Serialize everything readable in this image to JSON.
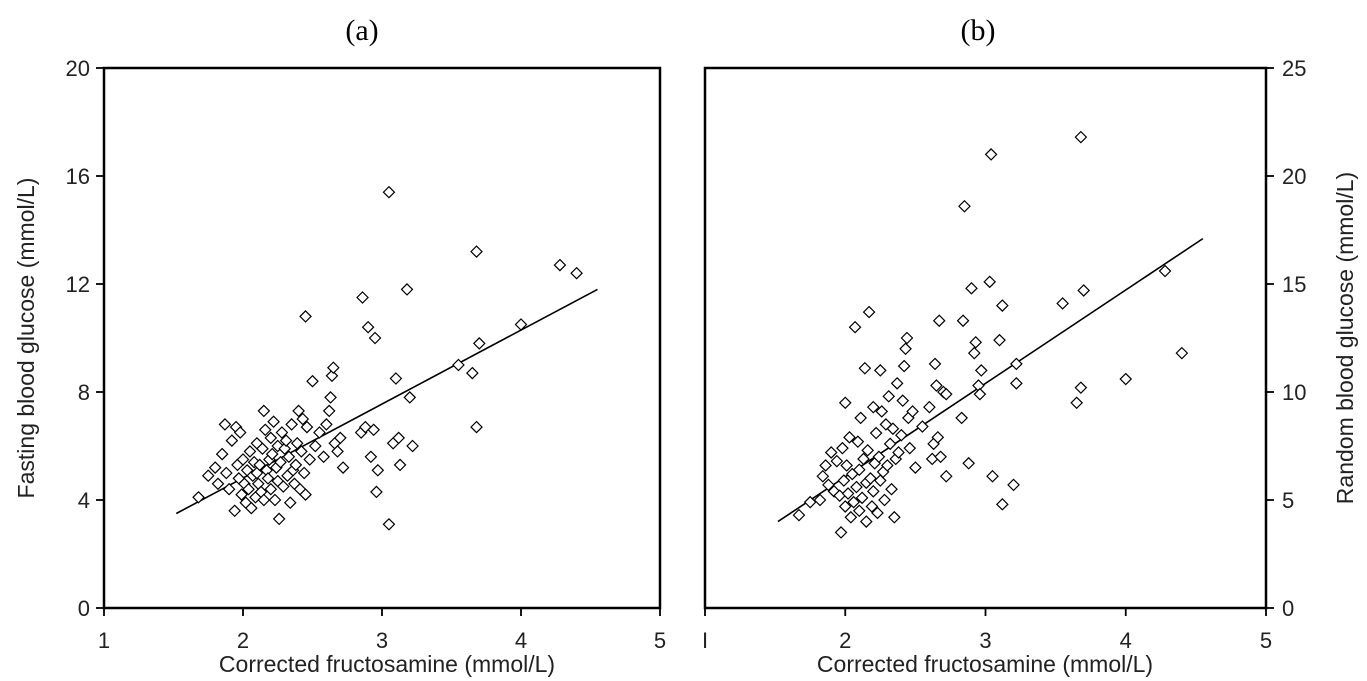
{
  "chart_data": [
    {
      "type": "scatter",
      "panel_label": "(a)",
      "xlabel": "Corrected fructosamine (mmol/L)",
      "ylabel": "Fasting blood glucose (mmol/L)",
      "xlim": [
        1,
        5
      ],
      "ylim": [
        0,
        20
      ],
      "xticks": [
        1,
        2,
        3,
        4,
        5
      ],
      "yticks": [
        0,
        4,
        8,
        12,
        16,
        20
      ],
      "y_axis_side": "left",
      "trendline": {
        "x": [
          1.52,
          4.55
        ],
        "y": [
          3.5,
          11.8
        ]
      },
      "points": [
        [
          1.68,
          4.1
        ],
        [
          1.75,
          4.9
        ],
        [
          1.8,
          5.2
        ],
        [
          1.82,
          4.6
        ],
        [
          1.85,
          5.7
        ],
        [
          1.87,
          6.8
        ],
        [
          1.88,
          5.0
        ],
        [
          1.9,
          4.4
        ],
        [
          1.92,
          6.2
        ],
        [
          1.94,
          3.6
        ],
        [
          1.95,
          6.7
        ],
        [
          1.96,
          5.3
        ],
        [
          1.97,
          4.8
        ],
        [
          1.98,
          6.5
        ],
        [
          1.99,
          4.2
        ],
        [
          2.0,
          5.5
        ],
        [
          2.01,
          4.6
        ],
        [
          2.02,
          3.9
        ],
        [
          2.03,
          5.1
        ],
        [
          2.04,
          4.4
        ],
        [
          2.05,
          5.8
        ],
        [
          2.06,
          3.7
        ],
        [
          2.07,
          4.9
        ],
        [
          2.08,
          5.4
        ],
        [
          2.09,
          4.1
        ],
        [
          2.1,
          5.0
        ],
        [
          2.1,
          6.1
        ],
        [
          2.11,
          4.6
        ],
        [
          2.12,
          5.3
        ],
        [
          2.13,
          4.3
        ],
        [
          2.14,
          5.9
        ],
        [
          2.15,
          7.3
        ],
        [
          2.15,
          4.0
        ],
        [
          2.16,
          6.6
        ],
        [
          2.17,
          5.1
        ],
        [
          2.18,
          4.8
        ],
        [
          2.19,
          5.5
        ],
        [
          2.2,
          6.3
        ],
        [
          2.2,
          4.4
        ],
        [
          2.21,
          5.7
        ],
        [
          2.22,
          6.9
        ],
        [
          2.23,
          4.0
        ],
        [
          2.24,
          5.2
        ],
        [
          2.25,
          6.0
        ],
        [
          2.25,
          4.7
        ],
        [
          2.26,
          3.3
        ],
        [
          2.27,
          5.4
        ],
        [
          2.28,
          6.5
        ],
        [
          2.29,
          4.5
        ],
        [
          2.3,
          5.9
        ],
        [
          2.31,
          6.2
        ],
        [
          2.32,
          4.9
        ],
        [
          2.33,
          5.6
        ],
        [
          2.34,
          3.9
        ],
        [
          2.35,
          6.8
        ],
        [
          2.36,
          5.1
        ],
        [
          2.37,
          4.6
        ],
        [
          2.38,
          5.3
        ],
        [
          2.39,
          6.1
        ],
        [
          2.4,
          7.3
        ],
        [
          2.41,
          4.4
        ],
        [
          2.42,
          5.8
        ],
        [
          2.43,
          7.0
        ],
        [
          2.44,
          5.0
        ],
        [
          2.45,
          10.8
        ],
        [
          2.45,
          4.2
        ],
        [
          2.46,
          6.7
        ],
        [
          2.48,
          5.5
        ],
        [
          2.5,
          8.4
        ],
        [
          2.52,
          6.0
        ],
        [
          2.55,
          6.5
        ],
        [
          2.58,
          5.6
        ],
        [
          2.6,
          6.8
        ],
        [
          2.62,
          7.3
        ],
        [
          2.63,
          7.8
        ],
        [
          2.64,
          8.6
        ],
        [
          2.65,
          8.9
        ],
        [
          2.66,
          6.1
        ],
        [
          2.68,
          5.8
        ],
        [
          2.7,
          6.3
        ],
        [
          2.72,
          5.2
        ],
        [
          2.85,
          6.5
        ],
        [
          2.86,
          11.5
        ],
        [
          2.88,
          6.7
        ],
        [
          2.9,
          10.4
        ],
        [
          2.92,
          5.6
        ],
        [
          2.94,
          6.6
        ],
        [
          2.95,
          10.0
        ],
        [
          2.96,
          4.3
        ],
        [
          2.97,
          5.1
        ],
        [
          3.05,
          15.4
        ],
        [
          3.05,
          3.1
        ],
        [
          3.08,
          6.1
        ],
        [
          3.1,
          8.5
        ],
        [
          3.12,
          6.3
        ],
        [
          3.13,
          5.3
        ],
        [
          3.18,
          11.8
        ],
        [
          3.2,
          7.8
        ],
        [
          3.22,
          6.0
        ],
        [
          3.55,
          9.0
        ],
        [
          3.65,
          8.7
        ],
        [
          3.68,
          13.2
        ],
        [
          3.68,
          6.7
        ],
        [
          3.7,
          9.8
        ],
        [
          4.0,
          10.5
        ],
        [
          4.28,
          12.7
        ],
        [
          4.4,
          12.4
        ]
      ]
    },
    {
      "type": "scatter",
      "panel_label": "(b)",
      "xlabel": "Corrected fructosamine (mmol/L)",
      "ylabel": "Random blood glucose (mmol/L)",
      "xlim": [
        1,
        5
      ],
      "ylim": [
        0,
        25
      ],
      "xticks": [
        2,
        3,
        4,
        5
      ],
      "x_first_tick_label": "I",
      "yticks": [
        0,
        5,
        10,
        15,
        20,
        25
      ],
      "y_axis_side": "right",
      "trendline": {
        "x": [
          1.52,
          4.55
        ],
        "y": [
          4.0,
          17.1
        ]
      },
      "points": [
        [
          1.67,
          4.3
        ],
        [
          1.75,
          4.9
        ],
        [
          1.82,
          5.0
        ],
        [
          1.84,
          6.1
        ],
        [
          1.86,
          6.6
        ],
        [
          1.88,
          5.7
        ],
        [
          1.9,
          7.2
        ],
        [
          1.92,
          5.4
        ],
        [
          1.94,
          6.8
        ],
        [
          1.96,
          5.2
        ],
        [
          1.97,
          3.5
        ],
        [
          1.98,
          7.4
        ],
        [
          1.99,
          5.9
        ],
        [
          2.0,
          4.7
        ],
        [
          2.0,
          9.5
        ],
        [
          2.01,
          6.6
        ],
        [
          2.02,
          5.3
        ],
        [
          2.03,
          7.9
        ],
        [
          2.04,
          4.2
        ],
        [
          2.05,
          6.2
        ],
        [
          2.06,
          4.9
        ],
        [
          2.07,
          13.0
        ],
        [
          2.08,
          5.6
        ],
        [
          2.09,
          7.7
        ],
        [
          2.1,
          4.5
        ],
        [
          2.1,
          6.4
        ],
        [
          2.11,
          8.8
        ],
        [
          2.12,
          5.1
        ],
        [
          2.13,
          6.9
        ],
        [
          2.14,
          11.1
        ],
        [
          2.15,
          4.0
        ],
        [
          2.15,
          5.8
        ],
        [
          2.16,
          7.3
        ],
        [
          2.17,
          13.7
        ],
        [
          2.18,
          6.0
        ],
        [
          2.19,
          4.7
        ],
        [
          2.2,
          9.3
        ],
        [
          2.2,
          5.4
        ],
        [
          2.21,
          6.7
        ],
        [
          2.22,
          8.1
        ],
        [
          2.23,
          4.4
        ],
        [
          2.24,
          7.0
        ],
        [
          2.25,
          11.0
        ],
        [
          2.25,
          5.9
        ],
        [
          2.26,
          9.1
        ],
        [
          2.27,
          6.3
        ],
        [
          2.28,
          5.0
        ],
        [
          2.29,
          8.5
        ],
        [
          2.3,
          6.6
        ],
        [
          2.31,
          9.8
        ],
        [
          2.32,
          7.6
        ],
        [
          2.33,
          5.5
        ],
        [
          2.34,
          8.3
        ],
        [
          2.35,
          4.2
        ],
        [
          2.36,
          6.9
        ],
        [
          2.37,
          10.4
        ],
        [
          2.38,
          7.2
        ],
        [
          2.4,
          8.0
        ],
        [
          2.41,
          9.6
        ],
        [
          2.42,
          11.2
        ],
        [
          2.43,
          12.0
        ],
        [
          2.44,
          12.5
        ],
        [
          2.45,
          8.8
        ],
        [
          2.46,
          7.4
        ],
        [
          2.48,
          9.1
        ],
        [
          2.5,
          6.5
        ],
        [
          2.55,
          8.4
        ],
        [
          2.6,
          9.3
        ],
        [
          2.62,
          6.9
        ],
        [
          2.63,
          7.6
        ],
        [
          2.64,
          11.3
        ],
        [
          2.65,
          10.3
        ],
        [
          2.66,
          7.9
        ],
        [
          2.67,
          13.3
        ],
        [
          2.68,
          7.0
        ],
        [
          2.7,
          10.0
        ],
        [
          2.72,
          6.1
        ],
        [
          2.72,
          9.9
        ],
        [
          2.83,
          8.8
        ],
        [
          2.84,
          13.3
        ],
        [
          2.85,
          18.6
        ],
        [
          2.88,
          6.7
        ],
        [
          2.9,
          14.8
        ],
        [
          2.92,
          11.8
        ],
        [
          2.93,
          12.3
        ],
        [
          2.95,
          10.3
        ],
        [
          2.96,
          9.9
        ],
        [
          2.97,
          11.0
        ],
        [
          3.03,
          15.1
        ],
        [
          3.04,
          21.0
        ],
        [
          3.05,
          6.1
        ],
        [
          3.1,
          12.4
        ],
        [
          3.12,
          14.0
        ],
        [
          3.12,
          4.8
        ],
        [
          3.2,
          5.7
        ],
        [
          3.22,
          11.3
        ],
        [
          3.22,
          10.4
        ],
        [
          3.55,
          14.1
        ],
        [
          3.65,
          9.5
        ],
        [
          3.68,
          21.8
        ],
        [
          3.68,
          10.2
        ],
        [
          3.7,
          14.7
        ],
        [
          4.0,
          10.6
        ],
        [
          4.28,
          15.6
        ],
        [
          4.4,
          11.8
        ]
      ]
    }
  ]
}
